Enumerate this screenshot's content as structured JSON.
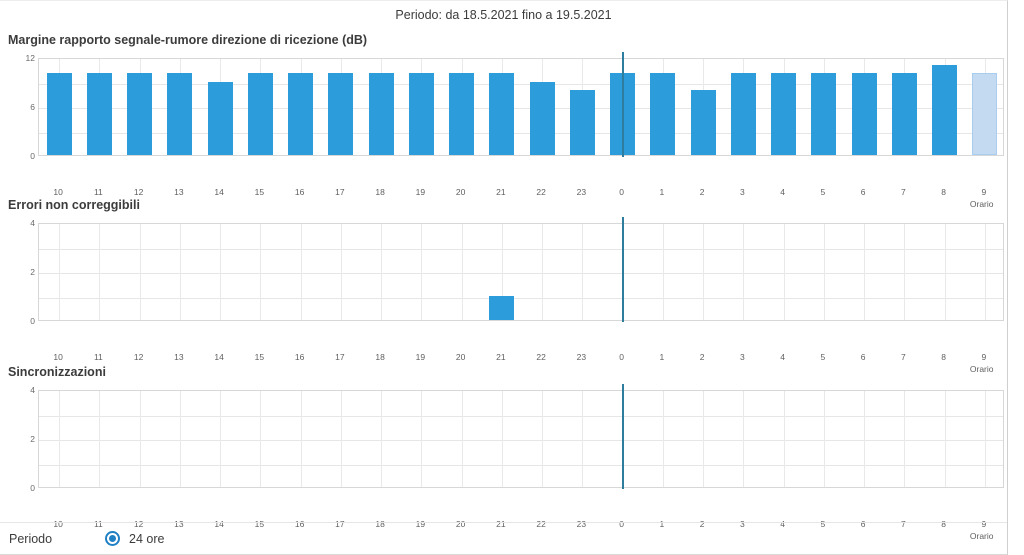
{
  "header": {
    "title": "Periodo: da 18.5.2021 fino a 19.5.2021"
  },
  "colors": {
    "bar": "#2d9cdb",
    "bar_incomplete": "#c3daf0",
    "bar_incomplete_border": "#a9cdee",
    "day_divider": "#2e7d9e",
    "radio_accent": "#1f80c3"
  },
  "chart_data": [
    {
      "type": "bar",
      "title": "Margine rapporto segnale-rumore direzione di ricezione (dB)",
      "xlabel": "Orario",
      "ylabel": "",
      "categories": [
        "10",
        "11",
        "12",
        "13",
        "14",
        "15",
        "16",
        "17",
        "18",
        "19",
        "20",
        "21",
        "22",
        "23",
        "0",
        "1",
        "2",
        "3",
        "4",
        "5",
        "6",
        "7",
        "8",
        "9"
      ],
      "values": [
        10,
        10,
        10,
        10,
        9,
        10,
        10,
        10,
        10,
        10,
        10,
        10,
        9,
        8,
        10,
        10,
        8,
        10,
        10,
        10,
        10,
        10,
        11,
        10
      ],
      "ylim": [
        0,
        12
      ],
      "ytick_labels": [
        "12",
        "6",
        "0"
      ],
      "ygrid_intervals": 4,
      "grid": true,
      "divider_category": "0",
      "last_bar_incomplete": true
    },
    {
      "type": "bar",
      "title": "Errori non correggibili",
      "xlabel": "Orario",
      "ylabel": "",
      "categories": [
        "10",
        "11",
        "12",
        "13",
        "14",
        "15",
        "16",
        "17",
        "18",
        "19",
        "20",
        "21",
        "22",
        "23",
        "0",
        "1",
        "2",
        "3",
        "4",
        "5",
        "6",
        "7",
        "8",
        "9"
      ],
      "values": [
        0,
        0,
        0,
        0,
        0,
        0,
        0,
        0,
        0,
        0,
        0,
        1,
        0,
        0,
        0,
        0,
        0,
        0,
        0,
        0,
        0,
        0,
        0,
        0
      ],
      "ylim": [
        0,
        4
      ],
      "ytick_labels": [
        "4",
        "2",
        "0"
      ],
      "ygrid_intervals": 4,
      "grid": true,
      "divider_category": "0",
      "last_bar_incomplete": false
    },
    {
      "type": "bar",
      "title": "Sincronizzazioni",
      "xlabel": "Orario",
      "ylabel": "",
      "categories": [
        "10",
        "11",
        "12",
        "13",
        "14",
        "15",
        "16",
        "17",
        "18",
        "19",
        "20",
        "21",
        "22",
        "23",
        "0",
        "1",
        "2",
        "3",
        "4",
        "5",
        "6",
        "7",
        "8",
        "9"
      ],
      "values": [
        0,
        0,
        0,
        0,
        0,
        0,
        0,
        0,
        0,
        0,
        0,
        0,
        0,
        0,
        0,
        0,
        0,
        0,
        0,
        0,
        0,
        0,
        0,
        0
      ],
      "ylim": [
        0,
        4
      ],
      "ytick_labels": [
        "4",
        "2",
        "0"
      ],
      "ygrid_intervals": 4,
      "grid": true,
      "divider_category": "0",
      "last_bar_incomplete": false
    }
  ],
  "footer": {
    "period_label": "Periodo",
    "selected_option": "24 ore"
  }
}
